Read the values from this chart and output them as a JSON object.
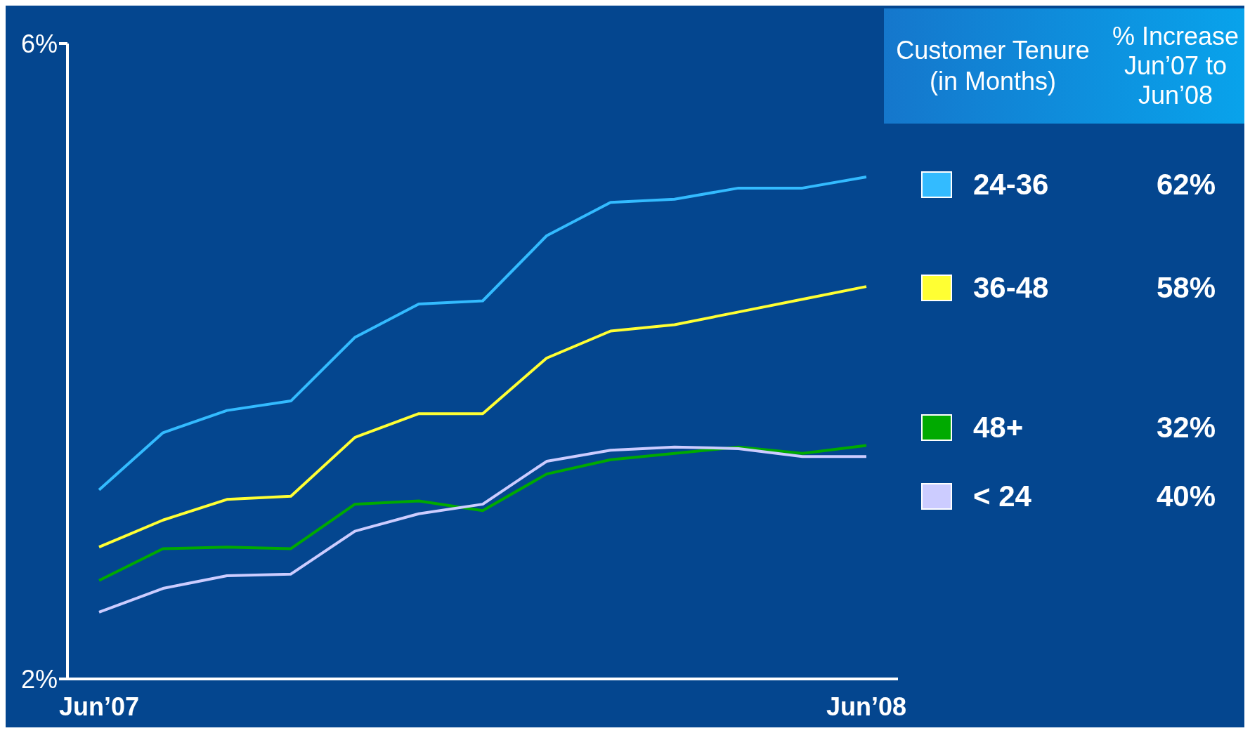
{
  "chart_data": {
    "type": "line",
    "categories": [
      "Jun’07",
      null,
      null,
      null,
      null,
      null,
      null,
      null,
      null,
      null,
      null,
      null,
      "Jun’08"
    ],
    "ylim": [
      2,
      6
    ],
    "yticks": [
      {
        "value": 6,
        "label": "6%"
      },
      {
        "value": 2,
        "label": "2%"
      }
    ],
    "grid": false,
    "marker": "none",
    "line_style": "solid",
    "legend": "right",
    "legend_title": "Customer Tenure (in Months)",
    "annotations": [
      "% Increase Jun’07 to Jun’08",
      "62%",
      "58%",
      "32%",
      "40%"
    ],
    "series": [
      {
        "name": "24-36",
        "color": "#33bbff",
        "values": [
          3.19,
          3.55,
          3.69,
          3.75,
          4.15,
          4.36,
          4.38,
          4.79,
          5.0,
          5.02,
          5.09,
          5.09,
          5.16
        ]
      },
      {
        "name": "36-48",
        "color": "#ffff33",
        "values": [
          2.83,
          3.0,
          3.13,
          3.15,
          3.52,
          3.67,
          3.67,
          4.02,
          4.19,
          4.23,
          4.31,
          4.39,
          4.47
        ]
      },
      {
        "name": "48+",
        "color": "#00aa00",
        "values": [
          2.62,
          2.82,
          2.83,
          2.82,
          3.1,
          3.12,
          3.06,
          3.29,
          3.38,
          3.42,
          3.46,
          3.42,
          3.47
        ]
      },
      {
        "name": "< 24",
        "color": "#ccccff",
        "values": [
          2.42,
          2.57,
          2.65,
          2.66,
          2.93,
          3.04,
          3.1,
          3.37,
          3.44,
          3.46,
          3.45,
          3.4,
          3.4
        ]
      }
    ]
  }
}
